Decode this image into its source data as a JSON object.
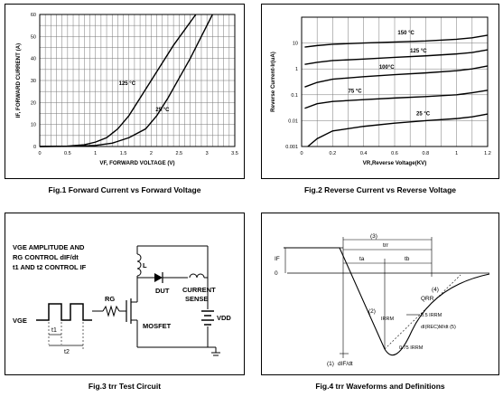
{
  "figures": {
    "fig1": {
      "caption": "Fig.1    Forward Current vs Forward Voltage"
    },
    "fig2": {
      "caption": "Fig.2    Reverse Current vs Reverse Voltage"
    },
    "fig3": {
      "caption": "Fig.3    trr Test Circuit"
    },
    "fig4": {
      "caption": "Fig.4 trr Waveforms and Definitions"
    }
  },
  "chart_data": [
    {
      "type": "line",
      "xlabel": "VF, FORWARD VOLTAGE (V)",
      "ylabel": "IF, FORWARD CURRENT (A)",
      "xlim": [
        0,
        3.5
      ],
      "ylim": [
        0,
        60
      ],
      "xticks": [
        "0",
        "0.5",
        "1",
        "1.5",
        "2",
        "2.5",
        "3",
        "3.5"
      ],
      "yticks": [
        "0",
        "10",
        "20",
        "30",
        "40",
        "50",
        "60"
      ],
      "grid": true,
      "series": [
        {
          "name": "125 °C",
          "x": [
            0,
            0.5,
            0.8,
            1.0,
            1.2,
            1.4,
            1.6,
            1.8,
            2.0,
            2.2,
            2.4,
            2.6,
            2.8
          ],
          "y": [
            0,
            0.2,
            0.8,
            2,
            4,
            8,
            14,
            22,
            30,
            38,
            46,
            53,
            60
          ]
        },
        {
          "name": "25 °C",
          "x": [
            0,
            0.6,
            1.0,
            1.3,
            1.6,
            1.9,
            2.1,
            2.3,
            2.5,
            2.7,
            2.9,
            3.1
          ],
          "y": [
            0,
            0.1,
            0.5,
            1.5,
            4,
            8,
            14,
            22,
            31,
            40,
            50,
            60
          ]
        }
      ]
    },
    {
      "type": "line",
      "xlabel": "VR,Reverse Voltage(KV)",
      "ylabel": "Reverse Current-Ir(uA)",
      "yscale": "log",
      "xlim": [
        0,
        1.2
      ],
      "ylim": [
        0.001,
        100
      ],
      "xticks": [
        "0",
        "0.2",
        "0.4",
        "0.6",
        "0.8",
        "1",
        "1.2"
      ],
      "yticks": [
        "0.001",
        "0.01",
        "0.1",
        "1",
        "10"
      ],
      "grid": true,
      "series": [
        {
          "name": "150 °C",
          "x": [
            0.02,
            0.1,
            0.2,
            0.4,
            0.6,
            0.8,
            1.0,
            1.1,
            1.2
          ],
          "y": [
            7,
            8,
            9,
            10,
            11,
            12,
            14,
            16,
            20
          ]
        },
        {
          "name": "125 °C",
          "x": [
            0.02,
            0.1,
            0.2,
            0.4,
            0.6,
            0.8,
            1.0,
            1.1,
            1.2
          ],
          "y": [
            1.5,
            1.8,
            2.1,
            2.4,
            2.8,
            3.2,
            3.8,
            4.3,
            5.5
          ]
        },
        {
          "name": "100°C",
          "x": [
            0.02,
            0.1,
            0.2,
            0.4,
            0.6,
            0.8,
            1.0,
            1.1,
            1.2
          ],
          "y": [
            0.2,
            0.3,
            0.4,
            0.5,
            0.6,
            0.7,
            0.85,
            1.0,
            1.3
          ]
        },
        {
          "name": "75 °C",
          "x": [
            0.02,
            0.1,
            0.2,
            0.4,
            0.6,
            0.8,
            1.0,
            1.1,
            1.2
          ],
          "y": [
            0.03,
            0.045,
            0.055,
            0.065,
            0.075,
            0.085,
            0.1,
            0.12,
            0.15
          ]
        },
        {
          "name": "25 °C",
          "x": [
            0.04,
            0.1,
            0.2,
            0.4,
            0.6,
            0.8,
            1.0,
            1.1,
            1.2
          ],
          "y": [
            0.001,
            0.002,
            0.004,
            0.006,
            0.008,
            0.01,
            0.012,
            0.014,
            0.018
          ]
        }
      ]
    }
  ],
  "fig3_text": {
    "line1": "VGE AMPLITUDE AND",
    "line2": "RG CONTROL dIF/dt",
    "line3": "t1 AND t2 CONTROL IF",
    "vge": "VGE",
    "rg": "RG",
    "l": "L",
    "dut": "DUT",
    "current": "CURRENT",
    "sense": "SENSE",
    "mosfet": "MOSFET",
    "vdd": "VDD",
    "t1": "t1",
    "t2": "t2"
  },
  "fig4_text": {
    "if": "IF",
    "zero": "0",
    "n3": "(3)",
    "trr": "trr",
    "ta": "ta",
    "tb": "tb",
    "n4": "(4)",
    "qrr": "QRR",
    "n2": "(2)",
    "irrm": "IRRM",
    "irrm05": "0.5 IRRM",
    "di_rec": "dI(REC)M/dt (5)",
    "irrm075": "0.75 IRRM",
    "n1": "(1)",
    "dif": "dIF/dt"
  }
}
